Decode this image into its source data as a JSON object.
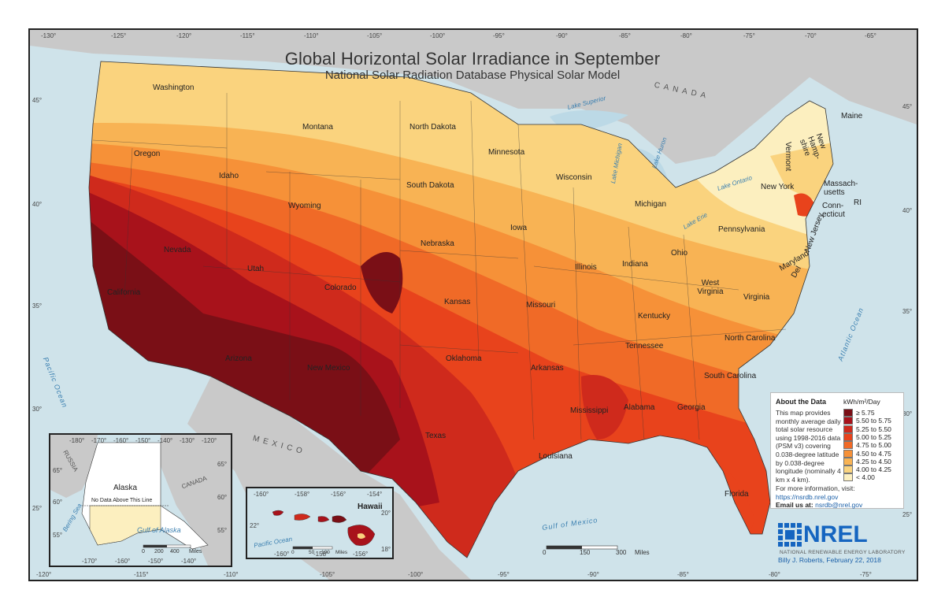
{
  "map": {
    "title": "Global Horizontal Solar Irradiance in September",
    "subtitle": "National Solar Radiation Database Physical Solar Model",
    "top_longitudes": [
      "-130°",
      "-125°",
      "-120°",
      "-115°",
      "-110°",
      "-105°",
      "-100°",
      "-95°",
      "-90°",
      "-85°",
      "-80°",
      "-75°",
      "-70°",
      "-65°"
    ],
    "bottom_longitudes": [
      "-120°",
      "-115°",
      "-110°",
      "-105°",
      "-100°",
      "-95°",
      "-90°",
      "-85°",
      "-80°",
      "-75°"
    ],
    "left_latitudes": [
      "45°",
      "40°",
      "35°",
      "30°",
      "25°"
    ],
    "right_latitudes": [
      "45°",
      "40°",
      "35°",
      "30°",
      "25°"
    ],
    "states": [
      "Washington",
      "Oregon",
      "California",
      "Nevada",
      "Idaho",
      "Montana",
      "Wyoming",
      "Utah",
      "Arizona",
      "Colorado",
      "New Mexico",
      "North Dakota",
      "South Dakota",
      "Nebraska",
      "Kansas",
      "Oklahoma",
      "Texas",
      "Minnesota",
      "Iowa",
      "Missouri",
      "Arkansas",
      "Louisiana",
      "Wisconsin",
      "Illinois",
      "Michigan",
      "Indiana",
      "Ohio",
      "Kentucky",
      "Tennessee",
      "Mississippi",
      "Alabama",
      "Georgia",
      "Florida",
      "South Carolina",
      "North Carolina",
      "Virginia",
      "West Virginia",
      "Pennsylvania",
      "New York",
      "Vermont",
      "New Hamp-shire",
      "Maine",
      "Massach-usetts",
      "Conn-ecticut",
      "RI",
      "New Jersey",
      "Maryland",
      "Del"
    ],
    "water": {
      "pacific": "Pacific Ocean",
      "atlantic": "Atlantic Ocean",
      "gulf_mexico": "Gulf of Mexico",
      "lake_superior": "Lake Superior",
      "lake_michigan": "Lake Michigan",
      "lake_huron": "Lake Huron",
      "lake_erie": "Lake Erie",
      "lake_ontario": "Lake Ontario"
    },
    "countries": {
      "canada": "CANADA",
      "mexico": "MEXICO"
    }
  },
  "about": {
    "title": "About the Data",
    "body": "This map provides monthly average daily total solar resource using 1998-2016 data (PSM v3) covering 0.038-degree latitude by 0.038-degree longitude (nominally 4 km x 4 km).",
    "more": "For more information, visit:",
    "url": "https://nsrdb.nrel.gov",
    "email_label": "Email us at:",
    "email": "nsrdb@nrel.gov"
  },
  "legend": {
    "unit": "kWh/m²/Day",
    "classes": [
      {
        "label": "≥ 5.75",
        "color": "#7a0f16"
      },
      {
        "label": "5.50 to 5.75",
        "color": "#a8121b"
      },
      {
        "label": "5.25 to 5.50",
        "color": "#cf2a1c"
      },
      {
        "label": "5.00 to 5.25",
        "color": "#e8431c"
      },
      {
        "label": "4.75 to 5.00",
        "color": "#f06a27"
      },
      {
        "label": "4.50 to 4.75",
        "color": "#f69138"
      },
      {
        "label": "4.25 to 4.50",
        "color": "#f8b354"
      },
      {
        "label": "4.00 to 4.25",
        "color": "#fad37e"
      },
      {
        "label": "< 4.00",
        "color": "#fcefbf"
      }
    ]
  },
  "scale": {
    "labels": [
      "0",
      "150",
      "300",
      "Miles"
    ]
  },
  "nrel": {
    "logo_text": "NREL",
    "logo_sub": "NATIONAL RENEWABLE ENERGY LABORATORY",
    "credit": "Billy J. Roberts, February 22, 2018"
  },
  "alaska": {
    "label": "Alaska",
    "russia": "RUSSIA",
    "canada": "CANADA",
    "bering": "Bering Sea",
    "gulf": "Gulf of Alaska",
    "note": "No Data Above This Line",
    "top_ticks": [
      "-180°",
      "-170°",
      "-160°",
      "-150°",
      "-140°",
      "-130°",
      "-120°"
    ],
    "bottom_ticks": [
      "-170°",
      "-160°",
      "-150°",
      "-140°"
    ],
    "lat_left": [
      "65°",
      "60°",
      "55°"
    ],
    "lat_right": [
      "65°",
      "60°",
      "55°"
    ],
    "scale": [
      "0",
      "200",
      "400",
      "Miles"
    ]
  },
  "hawaii": {
    "label": "Hawaii",
    "ocean": "Pacific Ocean",
    "top_ticks": [
      "-160°",
      "-158°",
      "-156°",
      "-154°"
    ],
    "bottom_ticks": [
      "-160°",
      "-158°",
      "-156°"
    ],
    "lat_left": [
      "22°"
    ],
    "lat_right": [
      "20°",
      "18°"
    ],
    "scale": [
      "0",
      "50",
      "100",
      "Miles"
    ]
  }
}
